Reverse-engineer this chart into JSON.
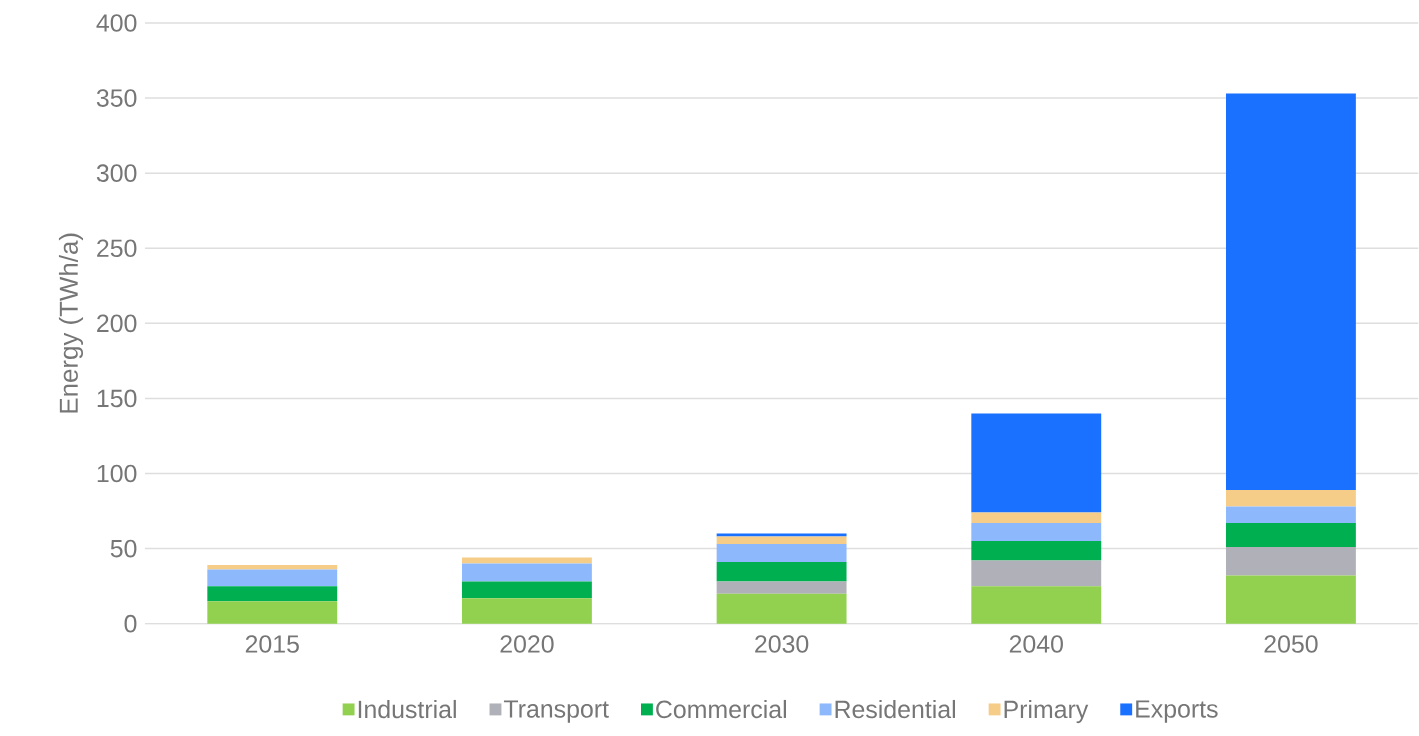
{
  "chart_data": {
    "type": "bar",
    "stacked": true,
    "ylabel": "Energy (TWh/a)",
    "categories": [
      "2015",
      "2020",
      "2030",
      "2040",
      "2050"
    ],
    "series": [
      {
        "name": "Industrial",
        "color": "#92d050",
        "values": [
          15,
          17,
          20,
          25,
          32
        ]
      },
      {
        "name": "Transport",
        "color": "#b0b0b8",
        "values": [
          0,
          0,
          8,
          17,
          19
        ]
      },
      {
        "name": "Commercial",
        "color": "#00b050",
        "values": [
          10,
          11,
          13,
          13,
          16
        ]
      },
      {
        "name": "Residential",
        "color": "#8db8fb",
        "values": [
          11,
          12,
          12,
          12,
          11
        ]
      },
      {
        "name": "Primary",
        "color": "#f6cd88",
        "values": [
          3,
          4,
          5,
          7,
          11
        ]
      },
      {
        "name": "Exports",
        "color": "#1a70ff",
        "values": [
          0,
          0,
          2,
          66,
          264
        ]
      }
    ],
    "ylim": [
      0,
      400
    ],
    "yticks": [
      0,
      50,
      100,
      150,
      200,
      250,
      300,
      350,
      400
    ],
    "grid": "y",
    "legend": "bottom"
  }
}
